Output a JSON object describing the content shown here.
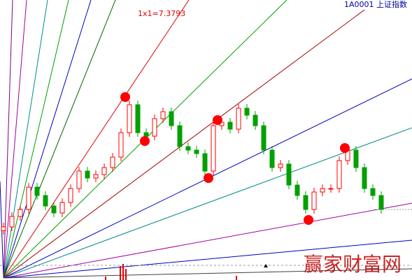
{
  "chart_data": {
    "type": "candlestick",
    "title": "1A0001 上证指数",
    "annotation": "1x1=7.3793",
    "watermark": "赢家财富网",
    "up_color": "#ff0000",
    "down_color": "#00a000",
    "ylim": [
      0,
      100
    ],
    "open": [
      17.5,
      18.75,
      22.5,
      25,
      33,
      30,
      26.25,
      23.75,
      27.5,
      32.5,
      38.75,
      36.25,
      37.5,
      40,
      43.75,
      52.5,
      62.5,
      52.5,
      51.25,
      57.5,
      60,
      55,
      47.5,
      46.25,
      45,
      38.75,
      55,
      56.25,
      53.75,
      61.25,
      58.75,
      55,
      46.25,
      40,
      41.25,
      33.75,
      30,
      25,
      31.25,
      32.5,
      32.5,
      42.5,
      46.25,
      40,
      32.5,
      30
    ],
    "high": [
      20.25,
      24,
      26.5,
      34.5,
      34.5,
      31.5,
      27.75,
      29,
      34,
      40.25,
      40.25,
      39,
      41.5,
      45.25,
      54,
      64,
      64,
      54,
      59,
      61.5,
      61.5,
      56.5,
      49,
      47.75,
      46.5,
      56.5,
      57.75,
      57.75,
      62.75,
      62.75,
      60.25,
      56.5,
      47.75,
      42.75,
      42.75,
      35.25,
      31.5,
      32.75,
      34,
      34,
      44,
      47.75,
      47.75,
      41.5,
      34,
      31.5
    ],
    "low": [
      16,
      17.25,
      21,
      23.5,
      28.5,
      24.75,
      22.25,
      22.25,
      26,
      31,
      34.75,
      34.75,
      36,
      38.5,
      42.25,
      51,
      51,
      49.75,
      49.75,
      56,
      53.5,
      46,
      44.75,
      43.5,
      37.25,
      37.25,
      53.5,
      52.25,
      52.25,
      57.25,
      53.5,
      44.75,
      38.5,
      38.5,
      32.25,
      28.5,
      23.5,
      23.5,
      29.75,
      31,
      31,
      41,
      38.5,
      31,
      28.5,
      23.5
    ],
    "close": [
      18.75,
      22.5,
      25,
      33,
      30,
      26.25,
      23.75,
      27.5,
      32.5,
      38.75,
      36.25,
      37.5,
      40,
      43.75,
      52.5,
      62.5,
      52.5,
      51.25,
      57.5,
      60,
      55,
      47.5,
      46.25,
      45,
      38.75,
      55,
      56.25,
      53.75,
      61.25,
      58.75,
      55,
      46.25,
      40,
      41.25,
      33.75,
      30,
      25,
      31.25,
      32.5,
      32.5,
      42.5,
      46.25,
      40,
      32.5,
      30,
      25
    ]
  }
}
